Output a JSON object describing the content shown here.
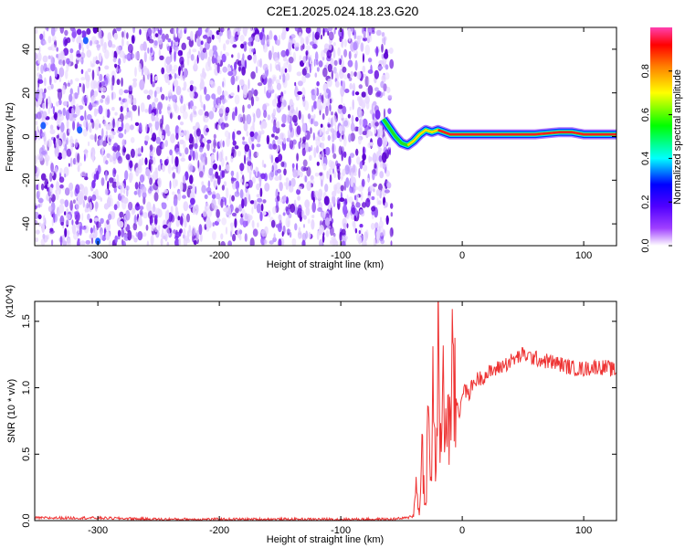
{
  "title": "C2E1.2025.024.18.23.G20",
  "chart_data": [
    {
      "type": "heatmap",
      "xlabel": "Height of straight line (km)",
      "ylabel": "Frequency (Hz)",
      "xlim": [
        -352,
        127
      ],
      "ylim": [
        -50,
        50
      ],
      "xticks": [
        -300,
        -200,
        -100,
        0,
        100
      ],
      "xtick_labels": [
        "-300",
        "-200",
        "-100",
        "0",
        "100"
      ],
      "yticks": [
        -40,
        -20,
        0,
        20,
        40
      ],
      "ytick_labels": [
        "-40",
        "-20",
        "0",
        "20",
        "40"
      ],
      "noise_region_x": [
        -352,
        -58
      ],
      "signal_track": [
        {
          "x": -65,
          "y": 8
        },
        {
          "x": -60,
          "y": 4
        },
        {
          "x": -55,
          "y": 0
        },
        {
          "x": -50,
          "y": -3
        },
        {
          "x": -45,
          "y": -4
        },
        {
          "x": -40,
          "y": -2
        },
        {
          "x": -35,
          "y": 1
        },
        {
          "x": -30,
          "y": 3
        },
        {
          "x": -25,
          "y": 2
        },
        {
          "x": -20,
          "y": 3
        },
        {
          "x": -15,
          "y": 2
        },
        {
          "x": -10,
          "y": 1
        },
        {
          "x": 0,
          "y": 1
        },
        {
          "x": 20,
          "y": 1
        },
        {
          "x": 40,
          "y": 1
        },
        {
          "x": 60,
          "y": 1
        },
        {
          "x": 80,
          "y": 2
        },
        {
          "x": 90,
          "y": 2
        },
        {
          "x": 100,
          "y": 1
        },
        {
          "x": 127,
          "y": 1
        }
      ],
      "colorbar": {
        "label": "Normalized spectral amplitude",
        "range": [
          0,
          1
        ],
        "ticks": [
          0.0,
          0.2,
          0.4,
          0.6,
          0.8
        ],
        "tick_labels": [
          "0.0",
          "0.2",
          "0.4",
          "0.6",
          "0.8"
        ],
        "colors": [
          "#ffffff",
          "#8000ff",
          "#0000ff",
          "#00ffff",
          "#00ff00",
          "#ffff00",
          "#ff8000",
          "#ff0000",
          "#ff00aa"
        ]
      }
    },
    {
      "type": "line",
      "xlabel": "Height of straight line (km)",
      "ylabel": "SNR (10 * v/v)",
      "scale_label": "(x10^4)",
      "xlim": [
        -352,
        127
      ],
      "ylim": [
        0,
        1.65
      ],
      "xticks": [
        -300,
        -200,
        -100,
        0,
        100
      ],
      "xtick_labels": [
        "-300",
        "-200",
        "-100",
        "0",
        "100"
      ],
      "yticks": [
        0.0,
        0.5,
        1.0,
        1.5
      ],
      "ytick_labels": [
        "0.0",
        "0.5",
        "1.0",
        "1.5"
      ],
      "line_color": "#ee3333",
      "series": [
        {
          "x": [
            -352,
            -320,
            -300,
            -250,
            -200,
            -150,
            -100,
            -60,
            -45,
            -40,
            -38,
            -35,
            -33,
            -30,
            -28,
            -26,
            -24,
            -22,
            -20,
            -18,
            -16,
            -14,
            -12,
            -10,
            -8,
            -5,
            -2,
            0,
            5,
            10,
            20,
            30,
            40,
            50,
            60,
            70,
            80,
            90,
            100,
            110,
            120,
            127
          ],
          "y": [
            0.02,
            0.02,
            0.02,
            0.01,
            0.01,
            0.01,
            0.01,
            0.01,
            0.02,
            0.05,
            0.3,
            0.05,
            0.6,
            0.1,
            0.9,
            0.2,
            1.2,
            0.3,
            1.4,
            0.4,
            1.6,
            0.5,
            1.1,
            0.7,
            1.2,
            0.9,
            0.8,
            1.0,
            0.95,
            1.05,
            1.1,
            1.15,
            1.2,
            1.25,
            1.22,
            1.2,
            1.18,
            1.15,
            1.14,
            1.16,
            1.15,
            1.12
          ]
        }
      ]
    }
  ]
}
